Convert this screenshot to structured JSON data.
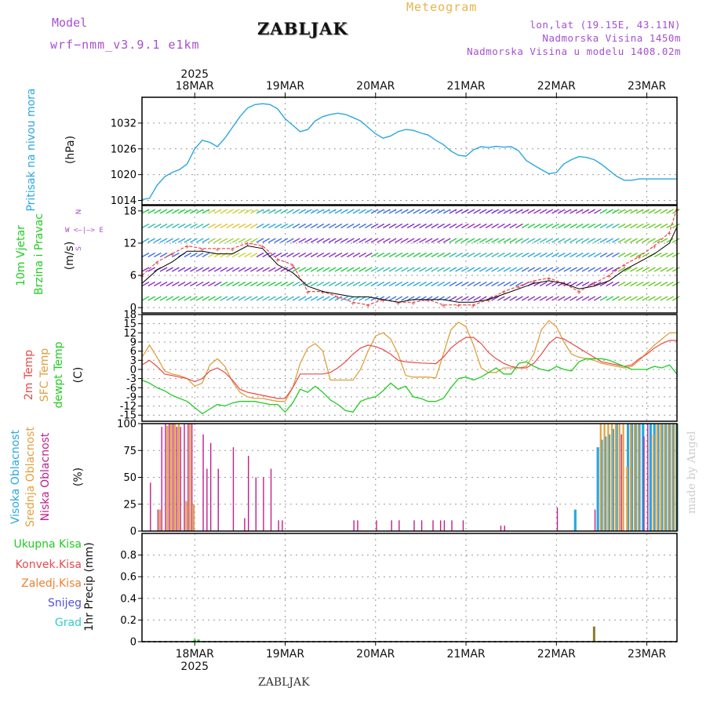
{
  "header": {
    "model_label": "Model",
    "model_name": "wrf−nmm_v3.9.1 e1km",
    "station": "ZABLJAK",
    "meteogram": "Meteogram",
    "lonlat": "lon,lat (19.15E, 43.11N)",
    "altitude": "Nadmorska Visina 1450m",
    "model_altitude": "Nadmorska Visina u modelu 1408.02m"
  },
  "footer": {
    "station": "ZABLJAK",
    "made_by": "made by Angel"
  },
  "colors": {
    "pressure": "#2aa7e0",
    "temp2m": "#e84a4a",
    "sfc": "#e0a040",
    "dewpt": "#22cc22",
    "high_cloud": "#2aa7e0",
    "mid_cloud": "#e0a040",
    "low_cloud": "#c0208a",
    "total_precip": "#22cc22",
    "conv_precip": "#e84a4a",
    "frozen": "#f08030",
    "snow": "#5050dd",
    "hail": "#33cccc",
    "header_purple": "#a64fd1"
  },
  "panel_labels": {
    "pressure": [
      "Pritisak na nivou mora",
      "(hPa)"
    ],
    "wind": [
      "10m Vjetar",
      "Brzina i Pravac",
      "(m/s)"
    ],
    "wind_compass": [
      "N",
      "W  <—|—>  E",
      "S"
    ],
    "temp": [
      "2m Temp",
      "SFC Temp",
      "dewpt Temp",
      "(C)"
    ],
    "cloud": [
      "Visoka Oblacnost",
      "Srednja Oblacnost",
      "Niska Oblacnost",
      "(%)"
    ],
    "precip_unit": "1hr Precip (mm)",
    "precip_legend": [
      "Ukupna Kisa",
      "Konvek.Kisa",
      "Zaledj.Kisa",
      "Snijeg",
      "Grad"
    ]
  },
  "chart_data": [
    {
      "type": "line",
      "name": "pressure",
      "x_range": [
        0,
        142
      ],
      "date_ticks": {
        "labels": [
          "18MAR",
          "19MAR",
          "20MAR",
          "21MAR",
          "22MAR",
          "23MAR"
        ],
        "hours": [
          14,
          38,
          62,
          86,
          110,
          134
        ],
        "year": "2025"
      },
      "ylim": [
        1013,
        1038
      ],
      "yticks": [
        1014,
        1020,
        1026,
        1032
      ],
      "series": [
        {
          "x": [
            0,
            2,
            4,
            6,
            8,
            10,
            12,
            14,
            16,
            18,
            20,
            22,
            24,
            26,
            28,
            30,
            32,
            34,
            36,
            38,
            40,
            42,
            44,
            46,
            48,
            50,
            52,
            54,
            56,
            58,
            60,
            62,
            64,
            66,
            68,
            70,
            72,
            74,
            76,
            78,
            80,
            82,
            84,
            86,
            88,
            90,
            92,
            94,
            96,
            98,
            100,
            102,
            104,
            106,
            108,
            110,
            112,
            114,
            116,
            118,
            120,
            122,
            124,
            126,
            128,
            130,
            132,
            134,
            136,
            138,
            140,
            142
          ],
          "values": [
            1014.2,
            1014.5,
            1017.5,
            1019.5,
            1020.5,
            1021.2,
            1022.5,
            1026.0,
            1028.0,
            1027.5,
            1026.5,
            1028.5,
            1031.0,
            1033.5,
            1035.5,
            1036.3,
            1036.5,
            1036.3,
            1035.3,
            1033.0,
            1031.5,
            1030.0,
            1030.5,
            1032.5,
            1033.5,
            1034.0,
            1034.3,
            1034.0,
            1033.3,
            1032.5,
            1031.0,
            1029.5,
            1028.5,
            1029.0,
            1030.0,
            1030.5,
            1030.3,
            1029.7,
            1029.2,
            1028.0,
            1027.0,
            1025.5,
            1024.5,
            1024.3,
            1025.8,
            1026.5,
            1026.3,
            1026.6,
            1026.4,
            1026.5,
            1025.5,
            1023.3,
            1022.2,
            1021.2,
            1020.2,
            1020.5,
            1022.5,
            1023.5,
            1024.2,
            1024.0,
            1023.5,
            1022.4,
            1021.0,
            1019.6,
            1018.7,
            1018.7,
            1019.0,
            1019.0,
            1019.0,
            1019.0,
            1019.0,
            1019.0
          ]
        }
      ]
    },
    {
      "type": "line",
      "name": "wind_speed",
      "ylim": [
        -1,
        19
      ],
      "yticks": [
        0,
        6,
        12,
        18
      ],
      "series": [
        {
          "name": "10m wind speed",
          "x": [
            0,
            4,
            8,
            12,
            16,
            20,
            24,
            28,
            32,
            36,
            40,
            44,
            48,
            52,
            56,
            60,
            64,
            68,
            72,
            76,
            80,
            84,
            88,
            92,
            96,
            100,
            104,
            108,
            112,
            116,
            120,
            124,
            128,
            132,
            136,
            140,
            142
          ],
          "values": [
            4.5,
            7.0,
            8.5,
            10.5,
            10.5,
            10.0,
            10.0,
            11.5,
            11.0,
            8.0,
            6.5,
            4.0,
            3.0,
            2.5,
            2.0,
            2.0,
            1.5,
            1.0,
            1.5,
            1.5,
            1.5,
            1.0,
            1.0,
            1.5,
            2.5,
            3.5,
            4.5,
            5.0,
            4.5,
            3.5,
            4.0,
            5.0,
            7.0,
            8.5,
            10.0,
            12.0,
            15.0
          ]
        },
        {
          "name": "wind gust",
          "x": [
            0,
            4,
            8,
            12,
            16,
            20,
            24,
            28,
            32,
            36,
            40,
            44,
            48,
            52,
            56,
            60,
            64,
            68,
            72,
            76,
            80,
            84,
            88,
            92,
            96,
            100,
            104,
            108,
            112,
            116,
            120,
            124,
            128,
            132,
            136,
            140,
            142
          ],
          "values": [
            6.0,
            8.5,
            10.0,
            11.5,
            11.0,
            11.0,
            11.0,
            12.0,
            11.5,
            9.0,
            8.0,
            3.0,
            3.0,
            2.0,
            1.0,
            0.5,
            1.5,
            1.0,
            1.0,
            1.5,
            0.5,
            0.5,
            0.5,
            1.5,
            3.0,
            4.0,
            5.0,
            5.5,
            4.5,
            3.0,
            4.5,
            6.0,
            8.0,
            9.5,
            11.5,
            14.0,
            18.5
          ]
        }
      ]
    },
    {
      "type": "line",
      "name": "temperature",
      "ylim": [
        -17,
        18
      ],
      "yticks": [
        -15,
        -12,
        -9,
        -6,
        -3,
        0,
        3,
        6,
        9,
        12,
        15,
        18
      ],
      "series": [
        {
          "name": "2m Temp",
          "x": [
            0,
            2,
            4,
            6,
            8,
            10,
            12,
            14,
            16,
            18,
            20,
            22,
            24,
            26,
            28,
            30,
            32,
            34,
            36,
            38,
            40,
            42,
            44,
            46,
            48,
            50,
            52,
            54,
            56,
            58,
            60,
            62,
            64,
            66,
            68,
            70,
            72,
            74,
            76,
            78,
            80,
            82,
            84,
            86,
            88,
            90,
            92,
            94,
            96,
            98,
            100,
            102,
            104,
            106,
            108,
            110,
            112,
            114,
            116,
            118,
            120,
            122,
            124,
            126,
            128,
            130,
            132,
            134,
            136,
            138,
            140,
            142
          ],
          "values": [
            1.5,
            3.0,
            1.0,
            -1.5,
            -2.0,
            -2.5,
            -3.0,
            -4.0,
            -3.0,
            -0.5,
            0.5,
            -1.0,
            -3.5,
            -6.5,
            -7.5,
            -8.0,
            -8.5,
            -9.0,
            -9.5,
            -9.5,
            -6.0,
            -1.5,
            -1.5,
            -1.5,
            -1.5,
            -1.0,
            0.5,
            2.5,
            5.0,
            7.0,
            8.0,
            7.5,
            6.5,
            5.0,
            3.0,
            2.5,
            2.3,
            2.1,
            2.0,
            1.9,
            4.0,
            7.0,
            9.0,
            10.5,
            10.5,
            8.5,
            5.5,
            3.5,
            2.0,
            1.0,
            0.5,
            0.5,
            2.0,
            5.0,
            8.5,
            10.5,
            10.0,
            8.5,
            7.0,
            5.5,
            4.0,
            2.5,
            2.0,
            1.5,
            1.0,
            1.5,
            3.5,
            5.0,
            7.0,
            8.5,
            9.5,
            9.5
          ]
        },
        {
          "name": "SFC Temp",
          "x": [
            0,
            2,
            4,
            6,
            8,
            10,
            12,
            14,
            16,
            18,
            20,
            22,
            24,
            26,
            28,
            30,
            32,
            34,
            36,
            38,
            40,
            42,
            44,
            46,
            48,
            50,
            52,
            54,
            56,
            58,
            60,
            62,
            64,
            66,
            68,
            70,
            72,
            74,
            76,
            78,
            80,
            82,
            84,
            86,
            88,
            90,
            92,
            94,
            96,
            98,
            100,
            102,
            104,
            106,
            108,
            110,
            112,
            114,
            116,
            118,
            120,
            122,
            124,
            126,
            128,
            130,
            132,
            134,
            136,
            138,
            140,
            142
          ],
          "values": [
            4.0,
            8.0,
            4.0,
            -0.5,
            -1.5,
            -2.0,
            -3.0,
            -5.5,
            -4.5,
            1.5,
            3.5,
            1.0,
            -4.0,
            -7.5,
            -9.0,
            -9.5,
            -9.5,
            -10.0,
            -10.5,
            -10.5,
            -6.0,
            2.0,
            7.0,
            8.5,
            6.0,
            -3.5,
            -3.5,
            -3.5,
            -3.5,
            0.0,
            6.0,
            11.0,
            12.0,
            10.0,
            5.0,
            -2.0,
            -2.5,
            -2.5,
            -2.5,
            -2.8,
            5.0,
            13.0,
            15.5,
            14.0,
            8.0,
            0.5,
            -1.0,
            -1.0,
            0.5,
            0.5,
            0.5,
            1.0,
            5.0,
            13.0,
            16.0,
            14.0,
            9.0,
            5.0,
            4.0,
            3.5,
            3.0,
            2.0,
            1.5,
            1.0,
            0.5,
            1.0,
            3.0,
            5.5,
            8.0,
            10.0,
            12.0,
            12.0
          ]
        },
        {
          "name": "dewpt Temp",
          "x": [
            0,
            2,
            4,
            6,
            8,
            10,
            12,
            14,
            16,
            18,
            20,
            22,
            24,
            26,
            28,
            30,
            32,
            34,
            36,
            38,
            40,
            42,
            44,
            46,
            48,
            50,
            52,
            54,
            56,
            58,
            60,
            62,
            64,
            66,
            68,
            70,
            72,
            74,
            76,
            78,
            80,
            82,
            84,
            86,
            88,
            90,
            92,
            94,
            96,
            98,
            100,
            102,
            104,
            106,
            108,
            110,
            112,
            114,
            116,
            118,
            120,
            122,
            124,
            126,
            128,
            130,
            132,
            134,
            136,
            138,
            140,
            142
          ],
          "values": [
            -3.5,
            -4.5,
            -6.0,
            -7.0,
            -8.5,
            -9.5,
            -10.5,
            -12.5,
            -14.5,
            -13.0,
            -11.5,
            -12.0,
            -11.0,
            -10.5,
            -10.5,
            -10.5,
            -11.0,
            -11.5,
            -11.5,
            -14.0,
            -11.0,
            -6.5,
            -7.5,
            -5.5,
            -7.5,
            -10.0,
            -11.5,
            -13.5,
            -14.0,
            -10.5,
            -9.5,
            -9.0,
            -7.0,
            -4.5,
            -6.5,
            -5.5,
            -9.0,
            -9.5,
            -10.5,
            -10.5,
            -9.5,
            -6.0,
            -3.0,
            -2.5,
            -3.5,
            -2.5,
            -1.0,
            0.5,
            -1.5,
            -1.5,
            2.0,
            2.5,
            1.0,
            0.0,
            -0.5,
            1.0,
            0.0,
            -0.5,
            2.5,
            3.5,
            3.5,
            3.5,
            3.0,
            2.0,
            1.0,
            0.0,
            0.0,
            0.0,
            1.0,
            0.5,
            1.5,
            -1.5
          ]
        }
      ]
    },
    {
      "type": "bar",
      "name": "cloud_cover",
      "ylim": [
        0,
        100
      ],
      "yticks": [
        0,
        25,
        50,
        75,
        100
      ],
      "series": [
        {
          "name": "Niska Oblacnost",
          "x": [
            2,
            4,
            5,
            6,
            7,
            8,
            9,
            10,
            11,
            12,
            13,
            16,
            17,
            18,
            20,
            24,
            27,
            28,
            30,
            32,
            34,
            36,
            37,
            56,
            57,
            62,
            66,
            68,
            72,
            74,
            77,
            79,
            80,
            82,
            85,
            95,
            96,
            110,
            120,
            127,
            133,
            134
          ],
          "values": [
            45,
            20,
            97,
            100,
            100,
            100,
            97,
            97,
            100,
            100,
            100,
            90,
            58,
            82,
            58,
            78,
            12,
            70,
            50,
            50,
            58,
            10,
            10,
            10,
            10,
            10,
            10,
            10,
            10,
            10,
            10,
            10,
            10,
            10,
            10,
            5,
            5,
            22,
            20,
            90,
            88,
            100
          ]
        },
        {
          "name": "Srednja Oblacnost",
          "x": [
            5,
            7,
            8,
            9,
            10,
            12,
            13,
            14,
            122,
            123,
            124,
            125,
            126,
            127,
            128,
            129,
            130,
            131,
            132,
            136,
            137,
            138,
            139,
            140,
            141,
            142
          ],
          "values": [
            20,
            98,
            100,
            100,
            100,
            28,
            100,
            25,
            100,
            100,
            100,
            100,
            100,
            100,
            100,
            60,
            100,
            100,
            100,
            90,
            100,
            100,
            100,
            100,
            100,
            100
          ]
        },
        {
          "name": "Visoka Oblacnost",
          "x": [
            115,
            121,
            122,
            123,
            124,
            125,
            126,
            129,
            130,
            131,
            132,
            133,
            135,
            136,
            137,
            138,
            139,
            140,
            141,
            142
          ],
          "values": [
            20,
            78,
            85,
            88,
            90,
            95,
            100,
            100,
            100,
            100,
            100,
            100,
            100,
            100,
            100,
            100,
            100,
            100,
            100,
            100
          ]
        }
      ]
    },
    {
      "type": "bar",
      "name": "precipitation",
      "ylim": [
        0,
        1.0
      ],
      "yticks": [
        0,
        0.2,
        0.4,
        0.6,
        0.8
      ],
      "series": [
        {
          "name": "Ukupna Kisa",
          "x": [
            14,
            15
          ],
          "values": [
            0.02,
            0.02
          ]
        },
        {
          "name": "Zaledj.Kisa",
          "x": [
            120
          ],
          "values": [
            0.14
          ]
        }
      ]
    }
  ]
}
